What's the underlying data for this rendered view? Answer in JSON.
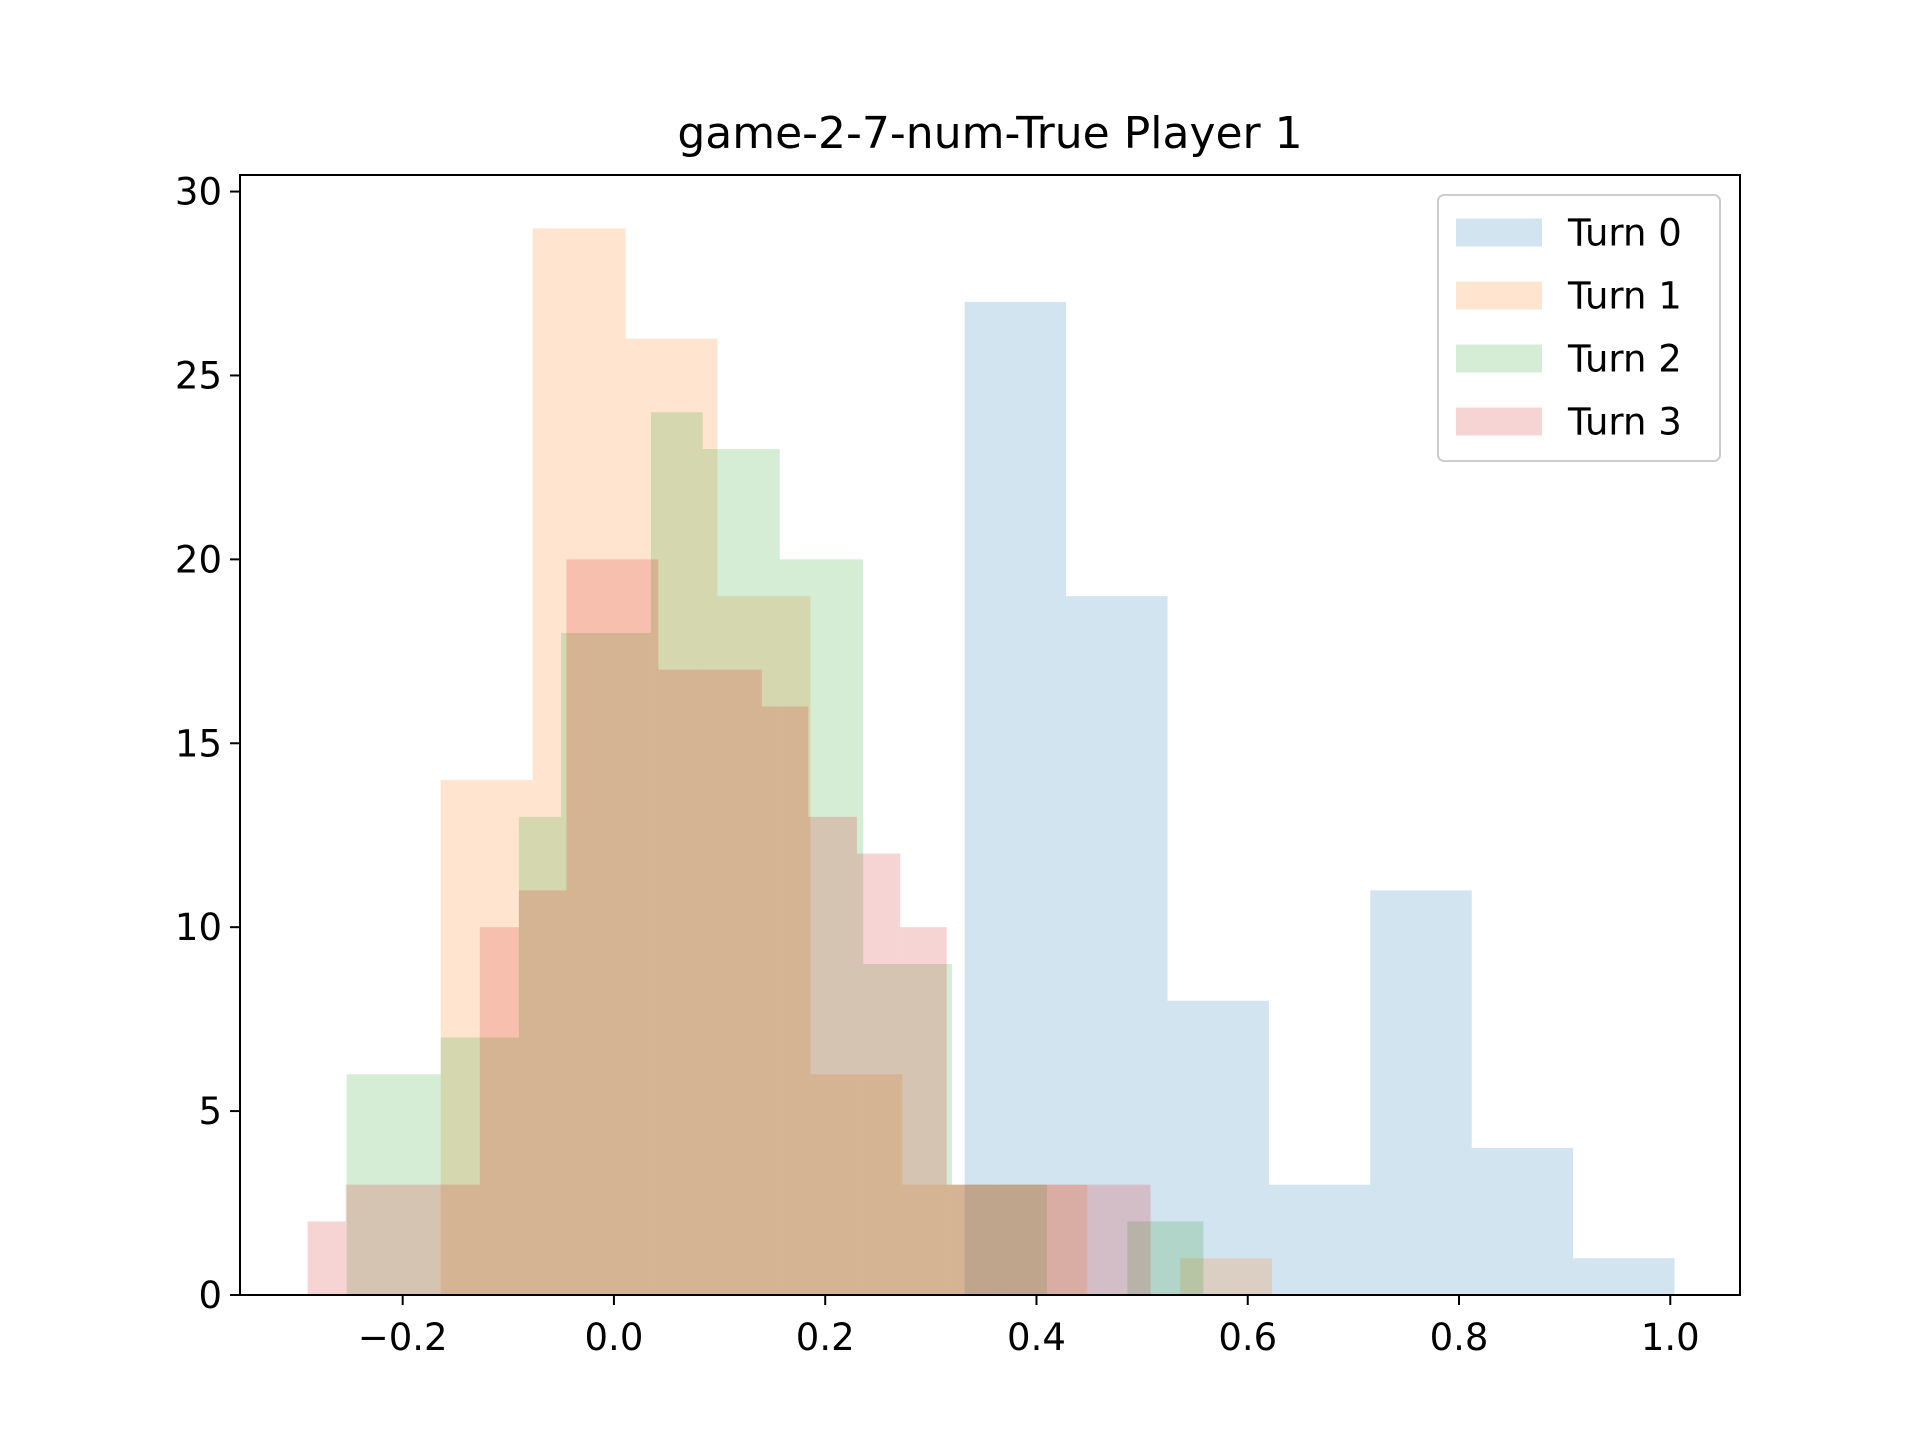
{
  "chart_data": {
    "type": "bar",
    "subtype": "overlapping-histogram",
    "title": "game-2-7-num-True Player 1",
    "xlabel": "",
    "ylabel": "",
    "xlim": [
      -0.354,
      1.066
    ],
    "ylim": [
      0,
      30.45
    ],
    "xticks": [
      -0.2,
      0.0,
      0.2,
      0.4,
      0.6,
      0.8,
      1.0
    ],
    "xtick_labels": [
      "−0.2",
      "0.0",
      "0.2",
      "0.4",
      "0.6",
      "0.8",
      "1.0"
    ],
    "yticks": [
      0,
      5,
      10,
      15,
      20,
      25,
      30
    ],
    "ytick_labels": [
      "0",
      "5",
      "10",
      "15",
      "20",
      "25",
      "30"
    ],
    "grid": false,
    "legend_position": "upper right",
    "series": [
      {
        "name": "Turn 0",
        "color": "#1f77b4",
        "opacity": 0.2,
        "bin_edges": [
          0.332,
          0.428,
          0.524,
          0.62,
          0.716,
          0.812,
          0.908,
          1.004
        ],
        "counts": [
          27,
          19,
          8,
          3,
          11,
          4,
          1
        ]
      },
      {
        "name": "Turn 1",
        "color": "#ff7f0e",
        "opacity": 0.2,
        "bin_edges": [
          -0.164,
          -0.077,
          0.011,
          0.098,
          0.186,
          0.273,
          0.361,
          0.448,
          0.536,
          0.623
        ],
        "counts": [
          14,
          29,
          26,
          19,
          6,
          3,
          3,
          0,
          1
        ]
      },
      {
        "name": "Turn 2",
        "color": "#2ca02c",
        "opacity": 0.2,
        "bin_edges": [
          -0.253,
          -0.164,
          -0.09,
          -0.05,
          0.035,
          0.084,
          0.157,
          0.236,
          0.32,
          0.41,
          0.486,
          0.558
        ],
        "counts": [
          6,
          7,
          13,
          18,
          24,
          23,
          20,
          9,
          3,
          0,
          2
        ]
      },
      {
        "name": "Turn 3",
        "color": "#d62728",
        "opacity": 0.2,
        "bin_edges": [
          -0.29,
          -0.254,
          -0.213,
          -0.127,
          -0.09,
          -0.045,
          0.042,
          0.14,
          0.184,
          0.23,
          0.271,
          0.315,
          0.361,
          0.41,
          0.508
        ],
        "counts": [
          2,
          3,
          3,
          10,
          11,
          20,
          17,
          16,
          13,
          12,
          10,
          3,
          3,
          3
        ]
      }
    ]
  }
}
